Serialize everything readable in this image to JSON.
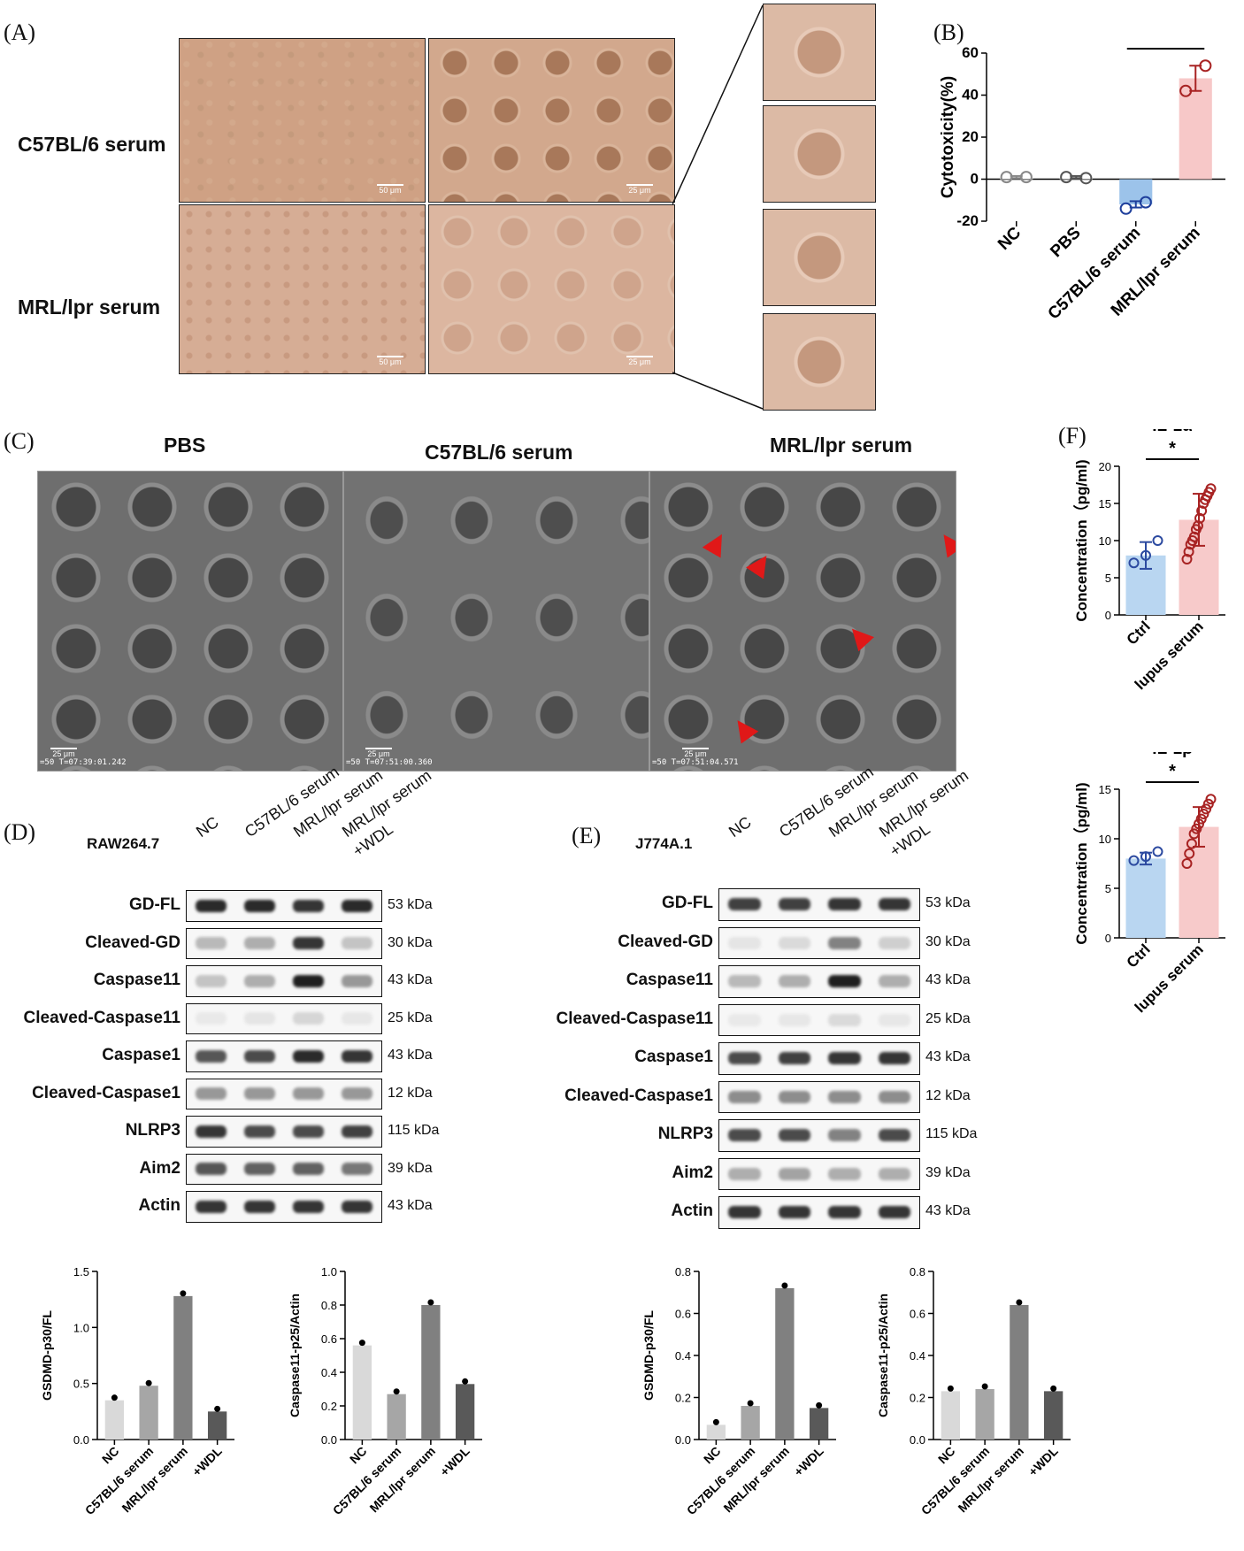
{
  "panels": {
    "A": "(A)",
    "B": "(B)",
    "C": "(C)",
    "D": "(D)",
    "E": "(E)",
    "F": "(F)"
  },
  "panelA": {
    "rows": [
      "C57BL/6 serum",
      "MRL/lpr serum"
    ],
    "scale_50": "50 μm",
    "scale_25": "25 μm"
  },
  "panelC": {
    "titles": [
      "PBS",
      "C57BL/6 serum",
      "MRL/lpr serum"
    ],
    "scale": "25 μm",
    "stamps": [
      "=50 T=07:39:01.242",
      "=50 T=07:51:00.360",
      "=50 T=07:51:04.571"
    ]
  },
  "panelD": {
    "cell_line": "RAW264.7",
    "columns": [
      "NC",
      "C57BL/6 serum",
      "MRL/lpr serum",
      "MRL/lpr serum\n+WDL"
    ],
    "rows": [
      {
        "name": "GD-FL",
        "kda": "53 kDa",
        "intensity": [
          0.9,
          0.9,
          0.85,
          0.9
        ]
      },
      {
        "name": "Cleaved-GD",
        "kda": "30 kDa",
        "intensity": [
          0.25,
          0.3,
          0.85,
          0.2
        ]
      },
      {
        "name": "Caspase11",
        "kda": "43 kDa",
        "intensity": [
          0.2,
          0.3,
          0.95,
          0.4
        ]
      },
      {
        "name": "Cleaved-Caspase11",
        "kda": "25 kDa",
        "intensity": [
          0.03,
          0.05,
          0.12,
          0.04
        ]
      },
      {
        "name": "Caspase1",
        "kda": "43 kDa",
        "intensity": [
          0.7,
          0.75,
          0.9,
          0.85
        ]
      },
      {
        "name": "Cleaved-Caspase1",
        "kda": "12 kDa",
        "intensity": [
          0.4,
          0.4,
          0.4,
          0.4
        ]
      },
      {
        "name": "NLRP3",
        "kda": "115 kDa",
        "intensity": [
          0.85,
          0.75,
          0.75,
          0.8
        ]
      },
      {
        "name": "Aim2",
        "kda": "39 kDa",
        "intensity": [
          0.7,
          0.65,
          0.65,
          0.55
        ]
      },
      {
        "name": "Actin",
        "kda": "43 kDa",
        "intensity": [
          0.85,
          0.85,
          0.85,
          0.85
        ]
      }
    ]
  },
  "panelE": {
    "cell_line": "J774A.1",
    "columns": [
      "NC",
      "C57BL/6 serum",
      "MRL/lpr serum",
      "MRL/lpr serum\n+WDL"
    ],
    "rows": [
      {
        "name": "GD-FL",
        "kda": "53 kDa",
        "intensity": [
          0.8,
          0.8,
          0.85,
          0.85
        ]
      },
      {
        "name": "Cleaved-GD",
        "kda": "30 kDa",
        "intensity": [
          0.05,
          0.1,
          0.5,
          0.15
        ]
      },
      {
        "name": "Caspase11",
        "kda": "43 kDa",
        "intensity": [
          0.25,
          0.3,
          0.95,
          0.3
        ]
      },
      {
        "name": "Cleaved-Caspase11",
        "kda": "25 kDa",
        "intensity": [
          0.03,
          0.04,
          0.1,
          0.04
        ]
      },
      {
        "name": "Caspase1",
        "kda": "43 kDa",
        "intensity": [
          0.75,
          0.8,
          0.85,
          0.85
        ]
      },
      {
        "name": "Cleaved-Caspase1",
        "kda": "12 kDa",
        "intensity": [
          0.45,
          0.45,
          0.45,
          0.45
        ]
      },
      {
        "name": "NLRP3",
        "kda": "115 kDa",
        "intensity": [
          0.75,
          0.75,
          0.5,
          0.75
        ]
      },
      {
        "name": "Aim2",
        "kda": "39 kDa",
        "intensity": [
          0.3,
          0.35,
          0.3,
          0.3
        ]
      },
      {
        "name": "Actin",
        "kda": "43 kDa",
        "intensity": [
          0.85,
          0.85,
          0.85,
          0.85
        ]
      }
    ]
  },
  "chart_data": [
    {
      "id": "B",
      "type": "bar",
      "categories": [
        "NC",
        "PBS",
        "C57BL/6 serum",
        "MRL/lpr serum"
      ],
      "values": [
        1,
        1,
        -12,
        48
      ],
      "points": [
        [
          1,
          1
        ],
        [
          1,
          0.5
        ],
        [
          -14,
          -11
        ],
        [
          42,
          54
        ]
      ],
      "errors": [
        0.5,
        0.5,
        1.5,
        6
      ],
      "colors": [
        "#ffffff",
        "#ffffff",
        "#9cc3ea",
        "#f7c8c8"
      ],
      "edge": [
        "#888888",
        "#555555",
        "#1f3f9c",
        "#a82323"
      ],
      "ylabel": "Cytotoxicity(%)",
      "ylim": [
        -20,
        60
      ],
      "yticks": [
        -20,
        0,
        20,
        40,
        60
      ],
      "annotation": "*"
    },
    {
      "id": "F1",
      "type": "bar",
      "title": "IL-1α",
      "categories": [
        "Ctrl",
        "lupus serum"
      ],
      "values": [
        8,
        12.8
      ],
      "points": [
        [
          7,
          8,
          10
        ],
        [
          7.5,
          8.5,
          9.5,
          10,
          10.5,
          11.5,
          12,
          13,
          14,
          15,
          15.5,
          16,
          16.5,
          17
        ]
      ],
      "errors": [
        1.8,
        3.5
      ],
      "colors": [
        "#b9d6f1",
        "#f7caca"
      ],
      "edge": [
        "#2c4aa0",
        "#a82323"
      ],
      "ylabel": "Concentration（pg/ml)",
      "ylim": [
        0,
        20
      ],
      "yticks": [
        0,
        5,
        10,
        15,
        20
      ],
      "annotation": "*"
    },
    {
      "id": "F2",
      "type": "bar",
      "title": "IL-1β",
      "categories": [
        "Ctrl",
        "lupus serum"
      ],
      "values": [
        8,
        11.2
      ],
      "points": [
        [
          7.8,
          8.2,
          8.7
        ],
        [
          7.5,
          8.5,
          9.5,
          10.5,
          11,
          11.5,
          12,
          12.5,
          13,
          13.5,
          14
        ]
      ],
      "errors": [
        0.6,
        2
      ],
      "colors": [
        "#b9d6f1",
        "#f7caca"
      ],
      "edge": [
        "#2c4aa0",
        "#a82323"
      ],
      "ylabel": "Concentration（pg/ml)",
      "ylim": [
        0,
        15
      ],
      "yticks": [
        0,
        5,
        10,
        15
      ],
      "annotation": "*"
    },
    {
      "id": "D1",
      "type": "bar",
      "categories": [
        "NC",
        "C57BL/6 serum",
        "MRL/lpr serum",
        "+WDL"
      ],
      "values": [
        0.35,
        0.48,
        1.28,
        0.25
      ],
      "colors": [
        "#d9d9d9",
        "#a6a6a6",
        "#808080",
        "#595959"
      ],
      "ylabel": "GSDMD-p30/FL",
      "ylim": [
        0,
        1.5
      ],
      "yticks": [
        0,
        0.5,
        1.0,
        1.5
      ],
      "ytick_labels": [
        "0.0",
        "0.5",
        "1.0",
        "1.5"
      ]
    },
    {
      "id": "D2",
      "type": "bar",
      "categories": [
        "NC",
        "C57BL/6 serum",
        "MRL/lpr serum",
        "+WDL"
      ],
      "values": [
        0.56,
        0.27,
        0.8,
        0.33
      ],
      "colors": [
        "#d9d9d9",
        "#a6a6a6",
        "#808080",
        "#595959"
      ],
      "ylabel": "Caspase11-p25/Actin",
      "ylim": [
        0,
        1.0
      ],
      "yticks": [
        0,
        0.2,
        0.4,
        0.6,
        0.8,
        1.0
      ],
      "ytick_labels": [
        "0.0",
        "0.2",
        "0.4",
        "0.6",
        "0.8",
        "1.0"
      ]
    },
    {
      "id": "E1",
      "type": "bar",
      "categories": [
        "NC",
        "C57BL/6 serum",
        "MRL/lpr serum",
        "+WDL"
      ],
      "values": [
        0.07,
        0.16,
        0.72,
        0.15
      ],
      "colors": [
        "#d9d9d9",
        "#a6a6a6",
        "#808080",
        "#595959"
      ],
      "ylabel": "GSDMD-p30/FL",
      "ylim": [
        0,
        0.8
      ],
      "yticks": [
        0,
        0.2,
        0.4,
        0.6,
        0.8
      ],
      "ytick_labels": [
        "0.0",
        "0.2",
        "0.4",
        "0.6",
        "0.8"
      ]
    },
    {
      "id": "E2",
      "type": "bar",
      "categories": [
        "NC",
        "C57BL/6 serum",
        "MRL/lpr serum",
        "+WDL"
      ],
      "values": [
        0.23,
        0.24,
        0.64,
        0.23
      ],
      "colors": [
        "#d9d9d9",
        "#a6a6a6",
        "#808080",
        "#595959"
      ],
      "ylabel": "Caspase11-p25/Actin",
      "ylim": [
        0,
        0.8
      ],
      "yticks": [
        0,
        0.2,
        0.4,
        0.6,
        0.8
      ],
      "ytick_labels": [
        "0.0",
        "0.2",
        "0.4",
        "0.6",
        "0.8"
      ]
    }
  ]
}
